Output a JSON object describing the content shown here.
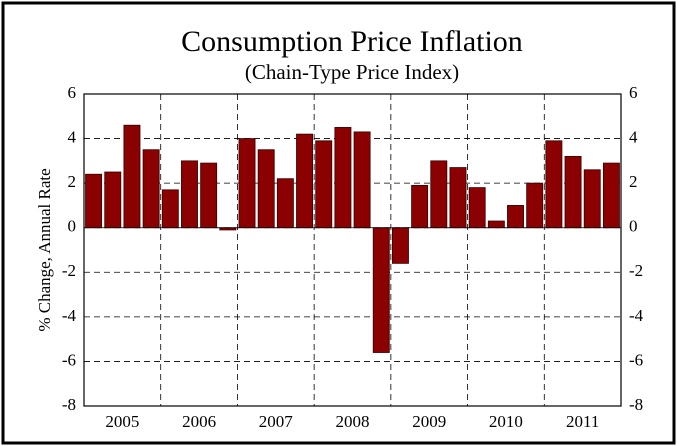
{
  "chart_data": {
    "type": "bar",
    "title": "Consumption Price Inflation",
    "subtitle": "(Chain-Type Price Index)",
    "y_label": "% Change, Annual Rate",
    "groups": [
      "2005",
      "2006",
      "2007",
      "2008",
      "2009",
      "2010",
      "2011"
    ],
    "values": [
      2.4,
      2.5,
      4.6,
      3.5,
      1.7,
      3.0,
      2.9,
      -0.1,
      4.0,
      3.5,
      2.2,
      4.2,
      3.9,
      4.5,
      4.3,
      -5.6,
      -1.6,
      1.9,
      3.0,
      2.7,
      1.8,
      0.3,
      1.0,
      2.0,
      3.9,
      3.2,
      2.6,
      2.9
    ],
    "color": "#8b0000",
    "ylim": [
      -8,
      6
    ],
    "yticks": [
      -8,
      -6,
      -4,
      -2,
      0,
      2,
      4,
      6
    ],
    "grid": true
  }
}
